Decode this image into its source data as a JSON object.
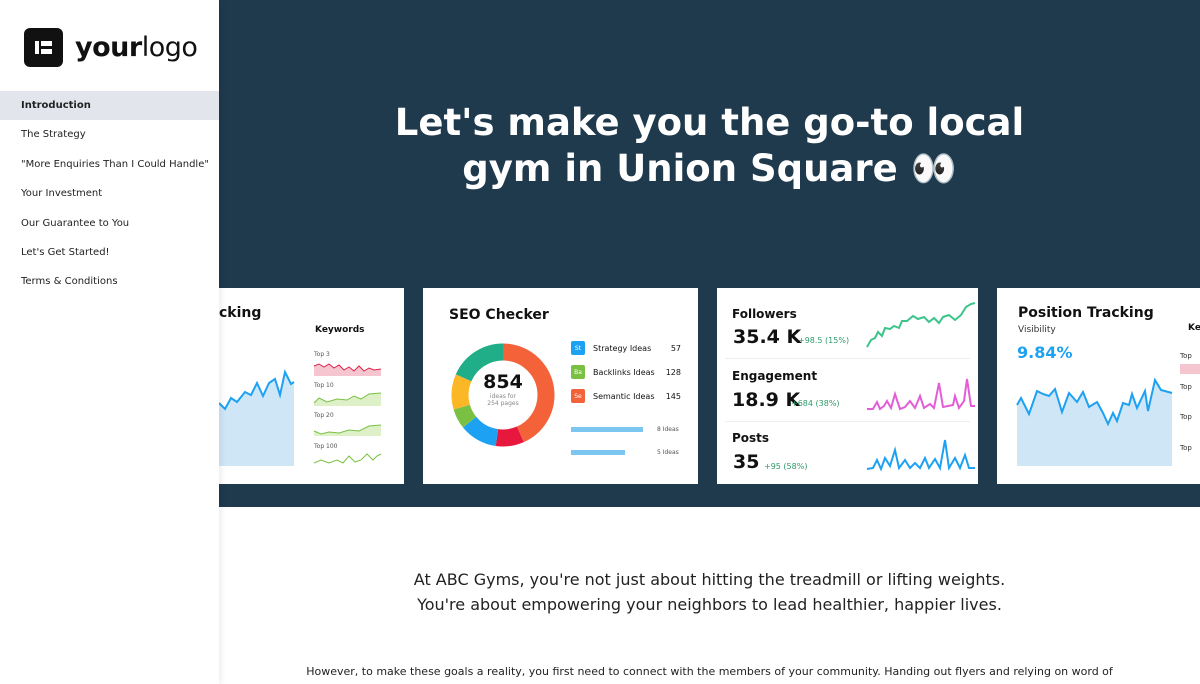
{
  "logo": {
    "bold": "your",
    "light": "logo"
  },
  "sidebar": {
    "items": [
      {
        "label": "Introduction",
        "active": true
      },
      {
        "label": "The Strategy"
      },
      {
        "label": "\"More Enquiries Than I Could Handle\""
      },
      {
        "label": "Your Investment"
      },
      {
        "label": "Our Guarantee to You"
      },
      {
        "label": "Let's Get Started!"
      },
      {
        "label": "Terms & Conditions"
      }
    ]
  },
  "hero": {
    "line1": "Let's make you the go-to local",
    "line2": "gym in Union Square 👀"
  },
  "banner_cards": {
    "tracking_partial": {
      "title": "cking",
      "keywords": "Keywords",
      "tops": [
        "Top 3",
        "Top 10",
        "Top 20",
        "Top 100"
      ]
    },
    "seo": {
      "title": "SEO Checker",
      "total": "854",
      "sub1": "ideas for",
      "sub2": "254 pages",
      "legend": [
        {
          "badge": "St",
          "label": "Strategy Ideas",
          "value": "57",
          "color": "#1da1f2"
        },
        {
          "badge": "Ba",
          "label": "Backlinks Ideas",
          "value": "128",
          "color": "#7ac143"
        },
        {
          "badge": "Se",
          "label": "Semantic Ideas",
          "value": "145",
          "color": "#f4623a"
        }
      ],
      "bars": [
        "8 Ideas",
        "5 Ideas"
      ]
    },
    "social": [
      {
        "label": "Followers",
        "value": "35.4 K",
        "delta": "+98.5 (15%)"
      },
      {
        "label": "Engagement",
        "value": "18.9 K",
        "delta": "+684 (38%)"
      },
      {
        "label": "Posts",
        "value": "35",
        "delta": "+95 (58%)"
      }
    ],
    "position": {
      "title": "Position Tracking",
      "sub": "Visibility",
      "value": "9.84%",
      "keywords": "Ke",
      "tops": [
        "Top",
        "Top",
        "Top",
        "Top"
      ]
    }
  },
  "intro": {
    "line1": "At ABC Gyms, you're not just about hitting the treadmill or lifting weights.",
    "line2": "You're about empowering your neighbors to lead healthier, happier lives."
  },
  "paragraph": "However, to make these goals a reality, you first need to connect with the members of your community. Handing out flyers and relying on word of",
  "colors": {
    "banner": "#1f394d",
    "accent_blue": "#1da1f2",
    "green": "#2e9a6a"
  }
}
